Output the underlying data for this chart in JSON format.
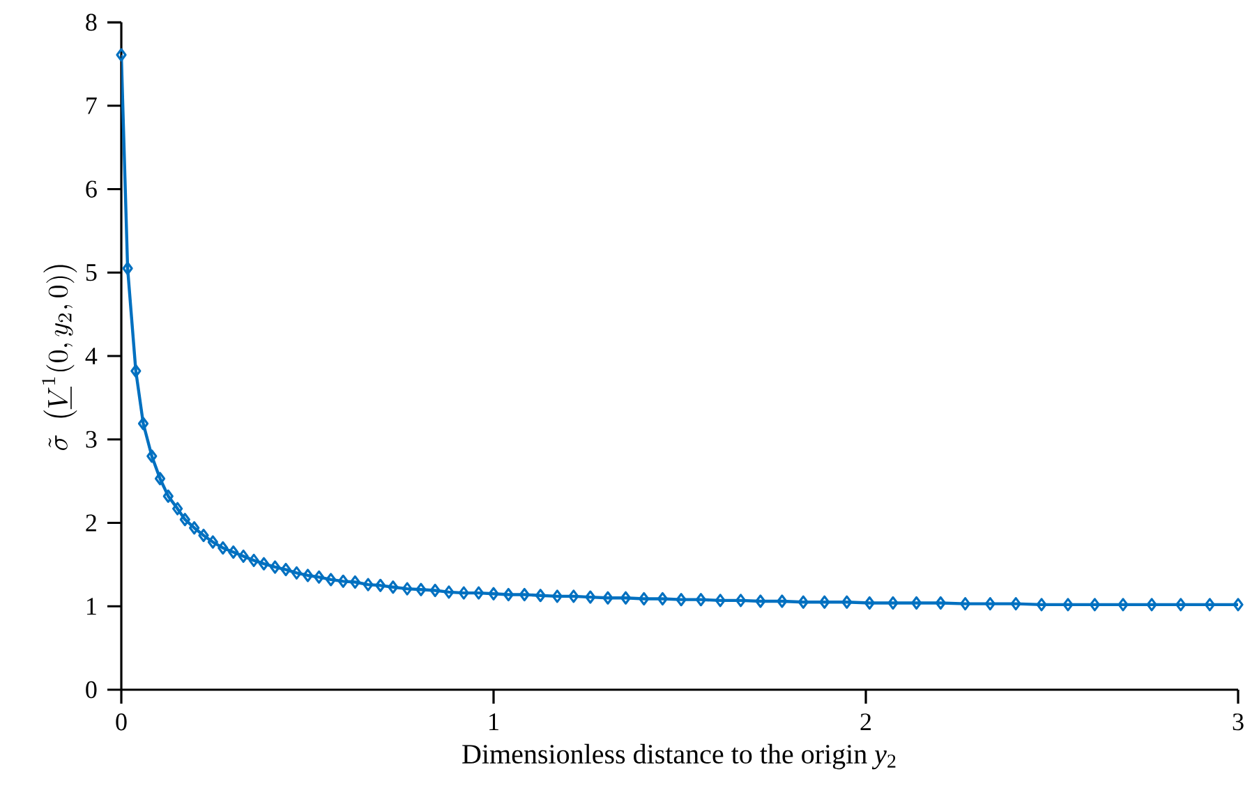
{
  "chart_data": {
    "type": "line",
    "xlabel": "Dimensionless distance to the origin  *y*$_{2}$",
    "ylabel": "\\tilde{\\sigma}\\;\\left(\\underline{V}^{1}(0,y_{2},0)\\right)",
    "x": [
      0,
      0.017,
      0.039,
      0.059,
      0.082,
      0.104,
      0.126,
      0.151,
      0.171,
      0.196,
      0.221,
      0.246,
      0.273,
      0.301,
      0.328,
      0.356,
      0.383,
      0.413,
      0.442,
      0.471,
      0.501,
      0.531,
      0.563,
      0.596,
      0.628,
      0.663,
      0.696,
      0.73,
      0.768,
      0.805,
      0.843,
      0.88,
      0.92,
      0.96,
      1.0,
      1.04,
      1.083,
      1.126,
      1.171,
      1.215,
      1.26,
      1.307,
      1.355,
      1.404,
      1.454,
      1.504,
      1.557,
      1.609,
      1.664,
      1.717,
      1.775,
      1.832,
      1.889,
      1.949,
      2.01,
      2.073,
      2.136,
      2.201,
      2.267,
      2.334,
      2.403,
      2.472,
      2.543,
      2.615,
      2.691,
      2.768,
      2.846,
      2.924,
      3.0
    ],
    "series": [
      {
        "color": "#0070c0",
        "values": [
          7.61,
          5.05,
          3.82,
          3.19,
          2.8,
          2.53,
          2.32,
          2.17,
          2.04,
          1.94,
          1.85,
          1.77,
          1.7,
          1.65,
          1.6,
          1.55,
          1.51,
          1.47,
          1.44,
          1.4,
          1.37,
          1.35,
          1.32,
          1.3,
          1.29,
          1.26,
          1.25,
          1.23,
          1.21,
          1.2,
          1.19,
          1.17,
          1.16,
          1.16,
          1.15,
          1.14,
          1.14,
          1.13,
          1.12,
          1.12,
          1.11,
          1.1,
          1.1,
          1.09,
          1.09,
          1.08,
          1.08,
          1.07,
          1.07,
          1.06,
          1.06,
          1.05,
          1.05,
          1.05,
          1.04,
          1.04,
          1.04,
          1.04,
          1.03,
          1.03,
          1.03,
          1.02,
          1.02,
          1.02,
          1.02,
          1.02,
          1.02,
          1.02,
          1.02
        ]
      }
    ],
    "xlim": [
      0,
      3
    ],
    "ylim": [
      0,
      8
    ],
    "xticks": [
      0,
      1,
      2,
      3
    ],
    "yticks": [
      0,
      1,
      2,
      3,
      4,
      5,
      6,
      7,
      8
    ],
    "marker": "diamond",
    "line_style": "solid",
    "grid": false
  }
}
